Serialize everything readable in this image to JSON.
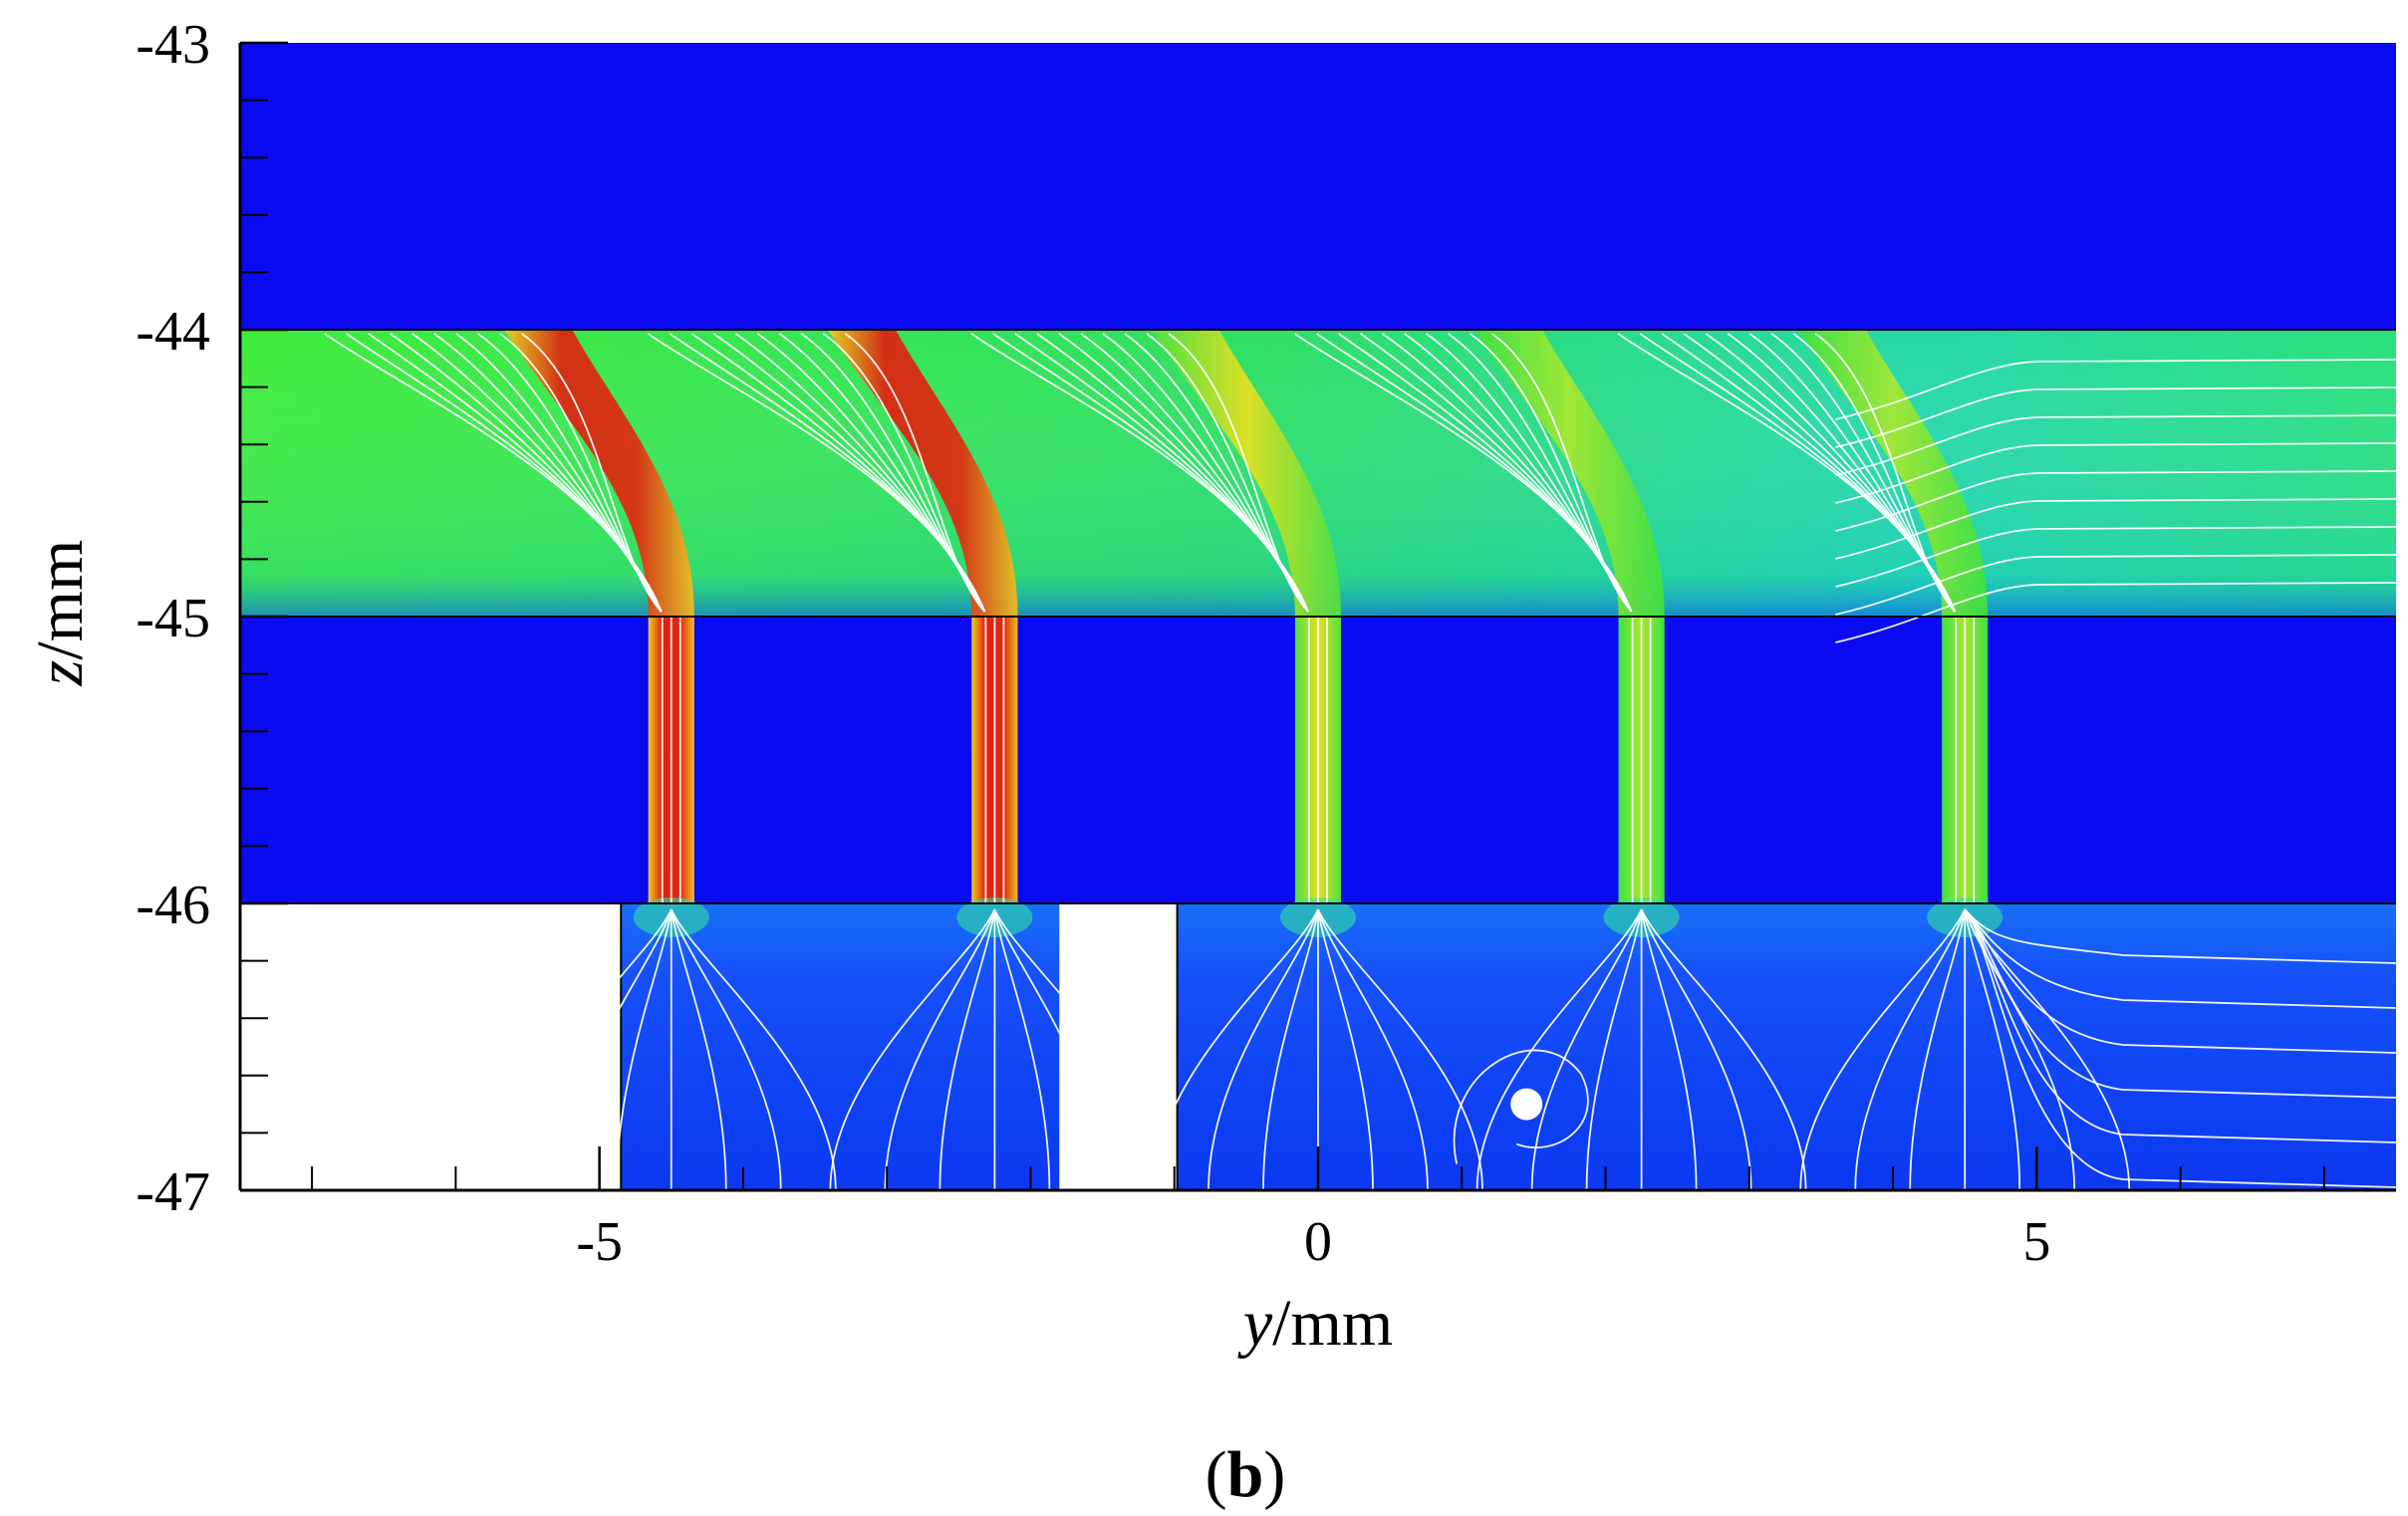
{
  "chart_data": {
    "type": "heatmap",
    "title": "",
    "xlabel": {
      "var": "y",
      "unit": "/mm"
    },
    "ylabel": {
      "var": "z",
      "unit": "/mm"
    },
    "panel_label": {
      "open": "(",
      "letter": "b",
      "close": ")"
    },
    "xlim": [
      -7.5,
      7.5
    ],
    "ylim": [
      -47,
      -43
    ],
    "x_ticks": [
      -5,
      0,
      5
    ],
    "y_ticks": [
      -43,
      -44,
      -45,
      -46,
      -47
    ],
    "x_minor_step": 1,
    "y_minor_step": 0.2,
    "grid": false,
    "legend": "none",
    "colors": {
      "solid_region": "#0a0bf0",
      "low": "#0a32ff",
      "mid": "#2ee84a",
      "high": "#e01a10",
      "void": "#ffffff",
      "streamline": "#ffffff"
    },
    "regions": {
      "top_solid": {
        "z": [
          -44,
          -43
        ]
      },
      "crossflow_channel": {
        "z": [
          -45,
          -44
        ]
      },
      "plate": {
        "z": [
          -46,
          -45
        ]
      },
      "plenum": {
        "z": [
          -47,
          -46
        ]
      }
    },
    "holes": [
      {
        "y_center": -4.5,
        "width": 0.32,
        "peak": "high"
      },
      {
        "y_center": -2.25,
        "width": 0.32,
        "peak": "high"
      },
      {
        "y_center": 0.0,
        "width": 0.32,
        "peak": "mid-high"
      },
      {
        "y_center": 2.25,
        "width": 0.32,
        "peak": "mid"
      },
      {
        "y_center": 4.5,
        "width": 0.32,
        "peak": "mid"
      }
    ],
    "plenum_walls": [
      {
        "y": [
          -7.5,
          -4.85
        ]
      },
      {
        "y": [
          -1.8,
          -0.98
        ]
      }
    ],
    "vortex_center": {
      "y": 1.45,
      "z": -46.7
    }
  }
}
